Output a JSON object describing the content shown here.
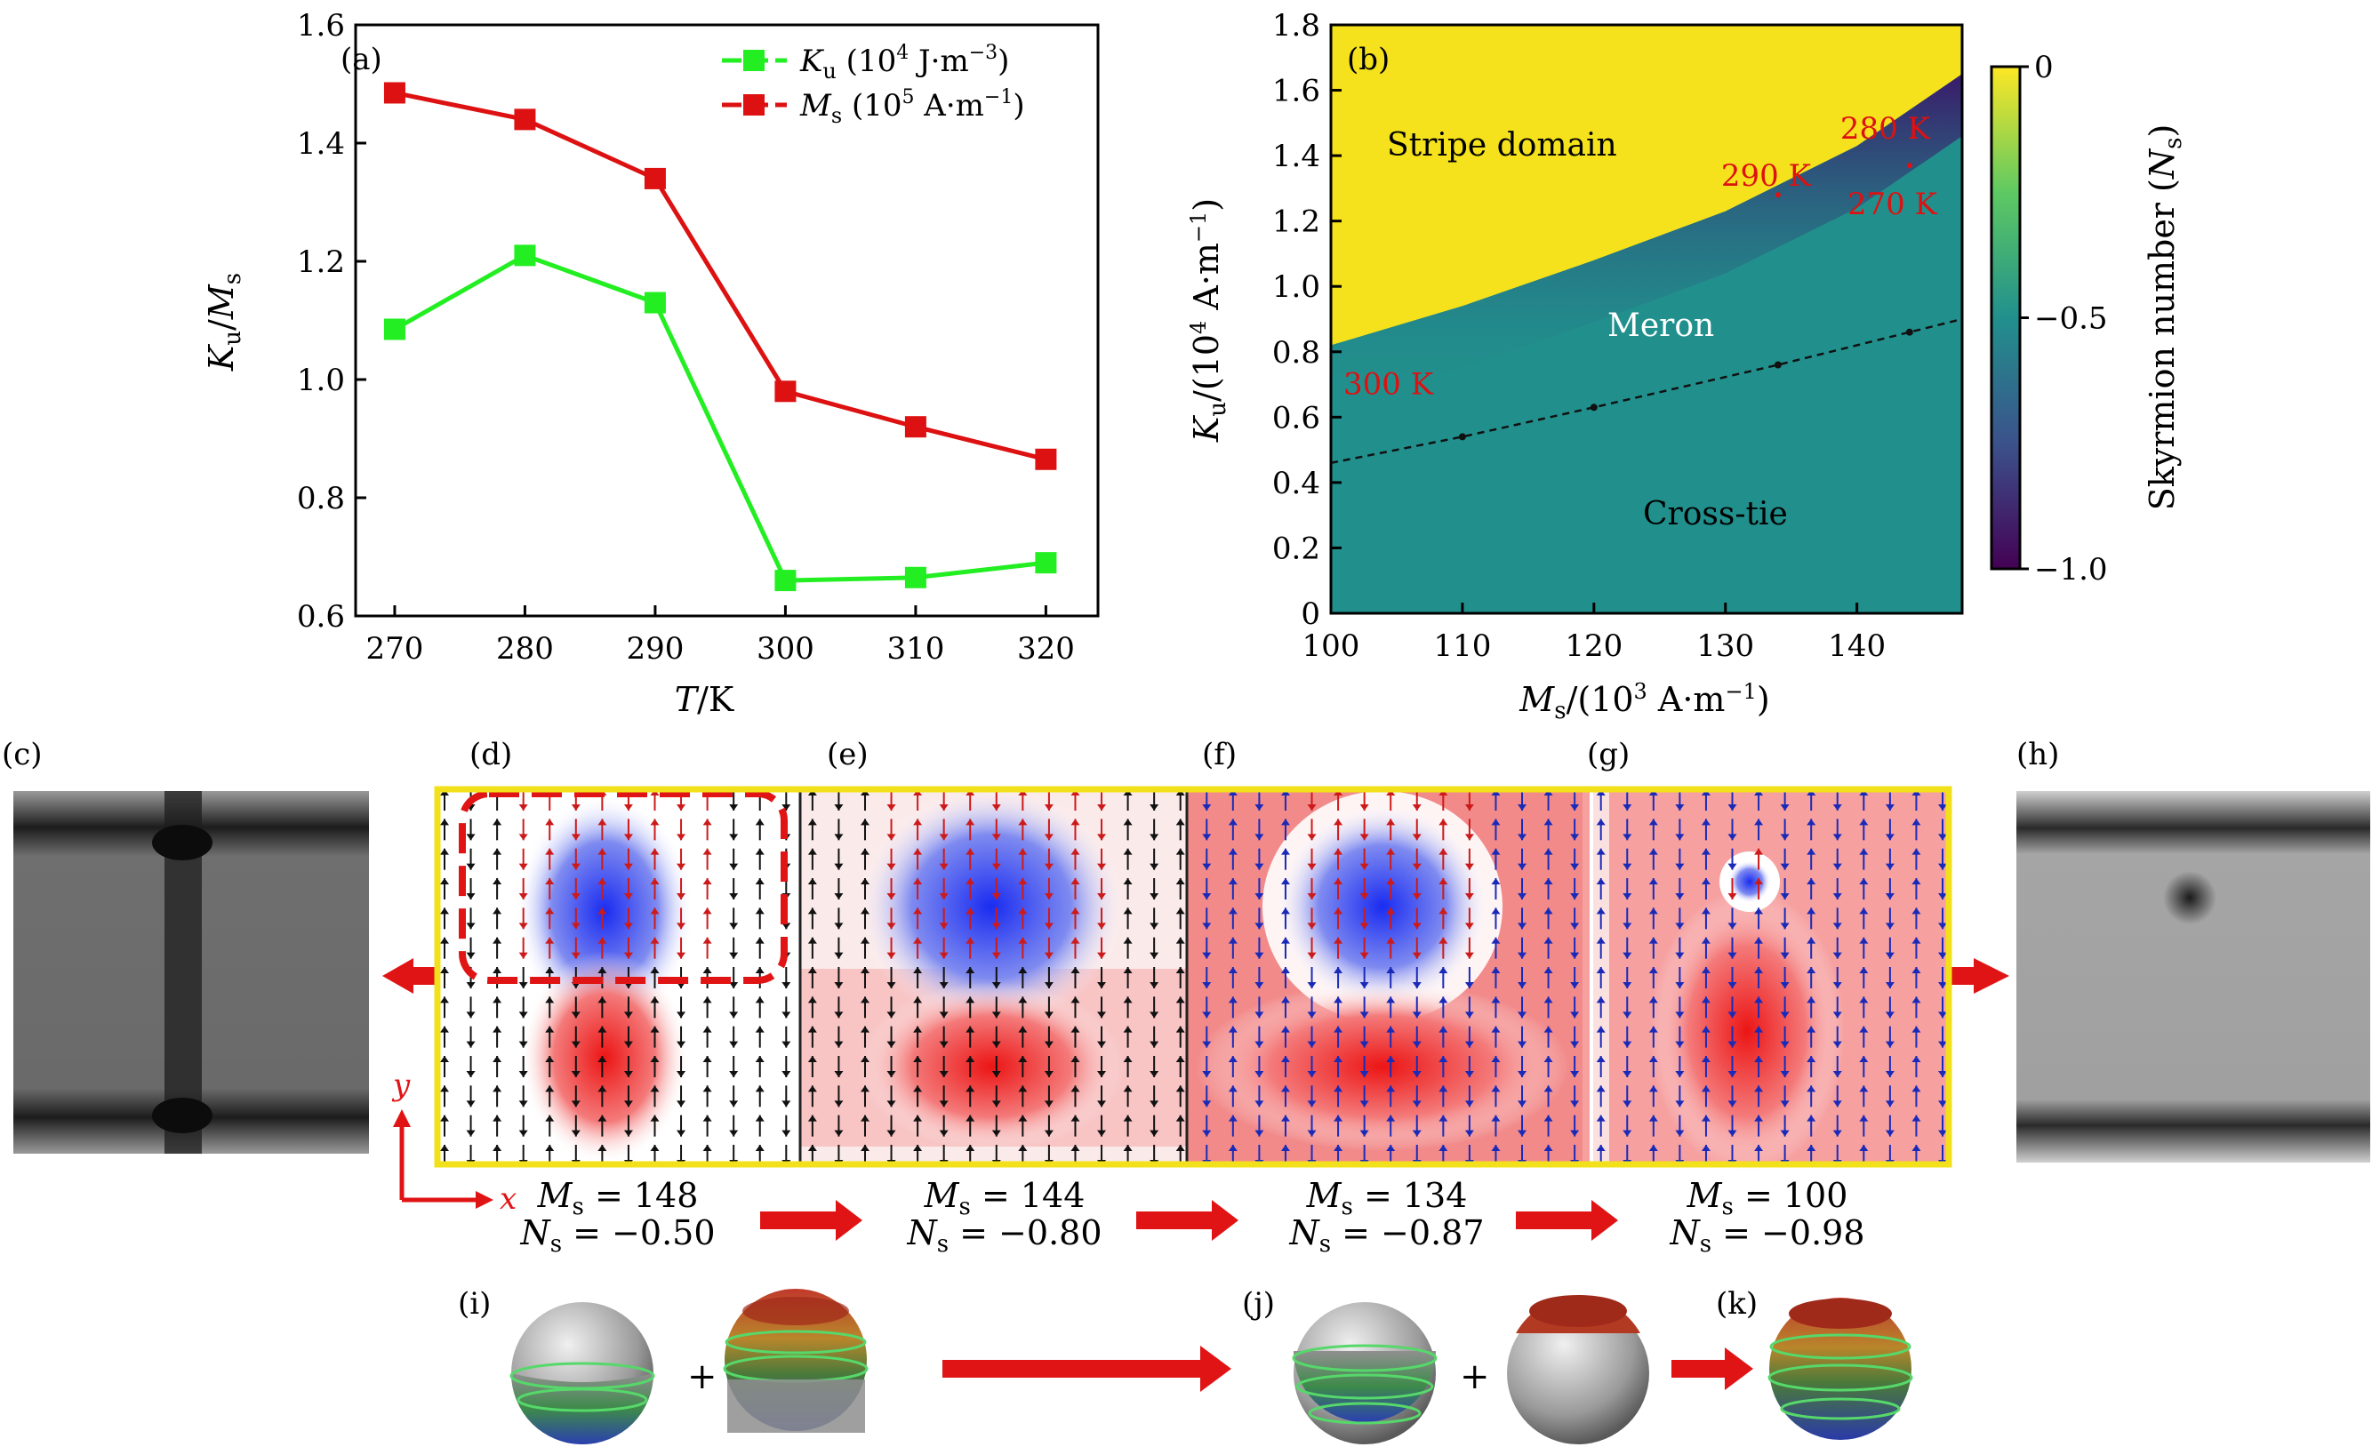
{
  "colors": {
    "ku_series": "#22ee22",
    "ms_series": "#dd1111",
    "stripe": "#f5e21c",
    "meron_dark": "#3b1c6e",
    "meron_teal": "#21908d",
    "annotation_red": "#dd1111",
    "frame_yellow": "#f2e11a",
    "arrow_red": "#e01414"
  },
  "panels": {
    "a": "(a)",
    "b": "(b)",
    "c": "(c)",
    "d": "(d)",
    "e": "(e)",
    "f": "(f)",
    "g": "(g)",
    "h": "(h)",
    "i": "(i)",
    "j": "(j)",
    "k": "(k)"
  },
  "chart_data": [
    {
      "type": "line",
      "panel": "(a)",
      "xlabel": "T/K",
      "ylabel": "Ku/Ms",
      "x": [
        270,
        280,
        290,
        300,
        310,
        320
      ],
      "xlim": [
        267,
        324
      ],
      "ylim": [
        0.6,
        1.6
      ],
      "xticks": [
        "270",
        "280",
        "290",
        "300",
        "310",
        "320"
      ],
      "yticks": [
        "0.6",
        "0.8",
        "1.0",
        "1.2",
        "1.4",
        "1.6"
      ],
      "series": [
        {
          "name": "Ku (10^4 J·m^-3)",
          "values": [
            1.085,
            1.21,
            1.13,
            0.66,
            0.665,
            0.69
          ]
        },
        {
          "name": "Ms (10^5 A·m^-1)",
          "values": [
            1.485,
            1.44,
            1.34,
            0.98,
            0.92,
            0.865
          ]
        }
      ],
      "legend": "top-right",
      "legend_labels": {
        "ku": {
          "sym": "K",
          "sub": "u",
          "unit_pre": "(10",
          "unit_exp": "4",
          "unit_mid": " J·m",
          "unit_exp2": "−3",
          "unit_post": ")"
        },
        "ms": {
          "sym": "M",
          "sub": "s",
          "unit_pre": "(10",
          "unit_exp": "5",
          "unit_mid": " A·m",
          "unit_exp2": "−1",
          "unit_post": ")"
        }
      }
    },
    {
      "type": "heatmap",
      "panel": "(b)",
      "xlabel": "Ms/(10^3 A·m^-1)",
      "ylabel": "Ku/(10^4 A·m^-1)",
      "xlim": [
        100,
        148
      ],
      "ylim": [
        0,
        1.8
      ],
      "xticks": [
        "100",
        "110",
        "120",
        "130",
        "140"
      ],
      "yticks": [
        "0",
        "0.2",
        "0.4",
        "0.6",
        "0.8",
        "1.0",
        "1.2",
        "1.4",
        "1.6",
        "1.8"
      ],
      "regions": [
        "Stripe domain",
        "Meron",
        "Cross-tie"
      ],
      "boundary": {
        "x": [
          100,
          110,
          120,
          130,
          140,
          148
        ],
        "y": [
          0.82,
          0.94,
          1.08,
          1.23,
          1.43,
          1.65
        ]
      },
      "dashed_line": {
        "x": [
          100,
          110,
          120,
          134,
          144,
          148
        ],
        "y": [
          0.46,
          0.54,
          0.63,
          0.76,
          0.86,
          0.9
        ]
      },
      "temperature_points": [
        {
          "label": "290 K",
          "x": 134,
          "y": 1.28
        },
        {
          "label": "280 K",
          "x": 144,
          "y": 1.37
        },
        {
          "label": "270 K",
          "x": 144,
          "y": 1.37
        },
        {
          "label": "300 K",
          "x": 100,
          "y": 0.76
        }
      ],
      "colorbar": {
        "label": "Skyrmion number (Ns)",
        "ticks": [
          "0",
          "−0.5",
          "−1.0"
        ],
        "range": [
          -1.0,
          0
        ]
      }
    }
  ],
  "states": [
    {
      "ms": "148",
      "ns": "−0.50"
    },
    {
      "ms": "144",
      "ns": "−0.80"
    },
    {
      "ms": "134",
      "ns": "−0.87"
    },
    {
      "ms": "100",
      "ns": "−0.98"
    }
  ],
  "axes_labels": {
    "x": "x",
    "y": "y"
  },
  "plus": "+"
}
